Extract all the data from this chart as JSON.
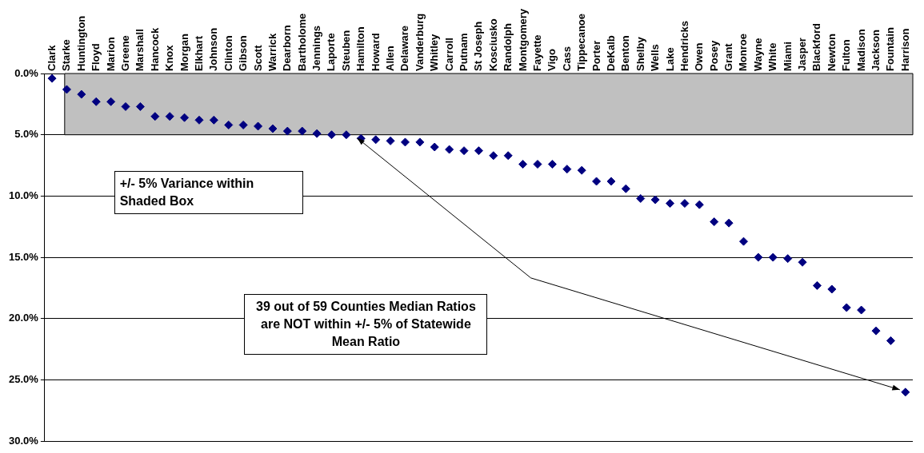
{
  "chart_data": {
    "type": "scatter",
    "categories": [
      "Clark",
      "Starke",
      "Huntington",
      "Floyd",
      "Marion",
      "Greene",
      "Marshall",
      "Hancock",
      "Knox",
      "Morgan",
      "Elkhart",
      "Johnson",
      "Clinton",
      "Gibson",
      "Scott",
      "Warrick",
      "Dearborn",
      "Bartholome",
      "Jennings",
      "Laporte",
      "Steuben",
      "Hamilton",
      "Howard",
      "Allen",
      "Delaware",
      "Vanderburg",
      "Whitley",
      "Carroll",
      "Putnam",
      "St Joseph",
      "Kosciusko",
      "Randolph",
      "Montgomery",
      "Fayette",
      "Vigo",
      "Cass",
      "Tippecanoe",
      "Porter",
      "DeKalb",
      "Benton",
      "Shelby",
      "Wells",
      "Lake",
      "Hendricks",
      "Owen",
      "Posey",
      "Grant",
      "Monroe",
      "Wayne",
      "White",
      "Miami",
      "Jasper",
      "Blackford",
      "Newton",
      "Fulton",
      "Madison",
      "Jackson",
      "Fountain",
      "Harrison"
    ],
    "series": [
      {
        "color": "#000080",
        "values": [
          0.4,
          1.3,
          1.7,
          2.3,
          2.3,
          2.7,
          2.7,
          3.5,
          3.5,
          3.6,
          3.8,
          3.8,
          4.2,
          4.2,
          4.3,
          4.5,
          4.7,
          4.7,
          4.9,
          5.0,
          5.0,
          5.3,
          5.4,
          5.5,
          5.6,
          5.6,
          6.0,
          6.2,
          6.3,
          6.3,
          6.7,
          6.7,
          7.4,
          7.4,
          7.4,
          7.8,
          7.9,
          8.8,
          8.8,
          9.4,
          10.2,
          10.3,
          10.6,
          10.6,
          10.7,
          12.1,
          12.2,
          13.7,
          15.0,
          15.0,
          15.1,
          15.4,
          17.3,
          17.6,
          19.1,
          19.3,
          21.0,
          21.8,
          26.0
        ]
      }
    ],
    "ylim": [
      30,
      0
    ],
    "yticks": [
      {
        "value": 0,
        "label": "0.0%"
      },
      {
        "value": 5,
        "label": "5.0%"
      },
      {
        "value": 10,
        "label": "10.0%"
      },
      {
        "value": 15,
        "label": "15.0%"
      },
      {
        "value": 20,
        "label": "20.0%"
      },
      {
        "value": 25,
        "label": "25.0%"
      },
      {
        "value": 30,
        "label": "30.0%"
      }
    ],
    "grid": "y",
    "legend": false,
    "marker": "diamond",
    "bands": [
      {
        "axis": "y",
        "from": 0,
        "to": 5,
        "color": "#c0c0c0"
      }
    ],
    "annotations": [
      "+/- 5% Variance within Shaded Box",
      "39 out of 59 Counties Median Ratios are NOT within +/- 5% of Statewide Mean Ratio"
    ]
  }
}
